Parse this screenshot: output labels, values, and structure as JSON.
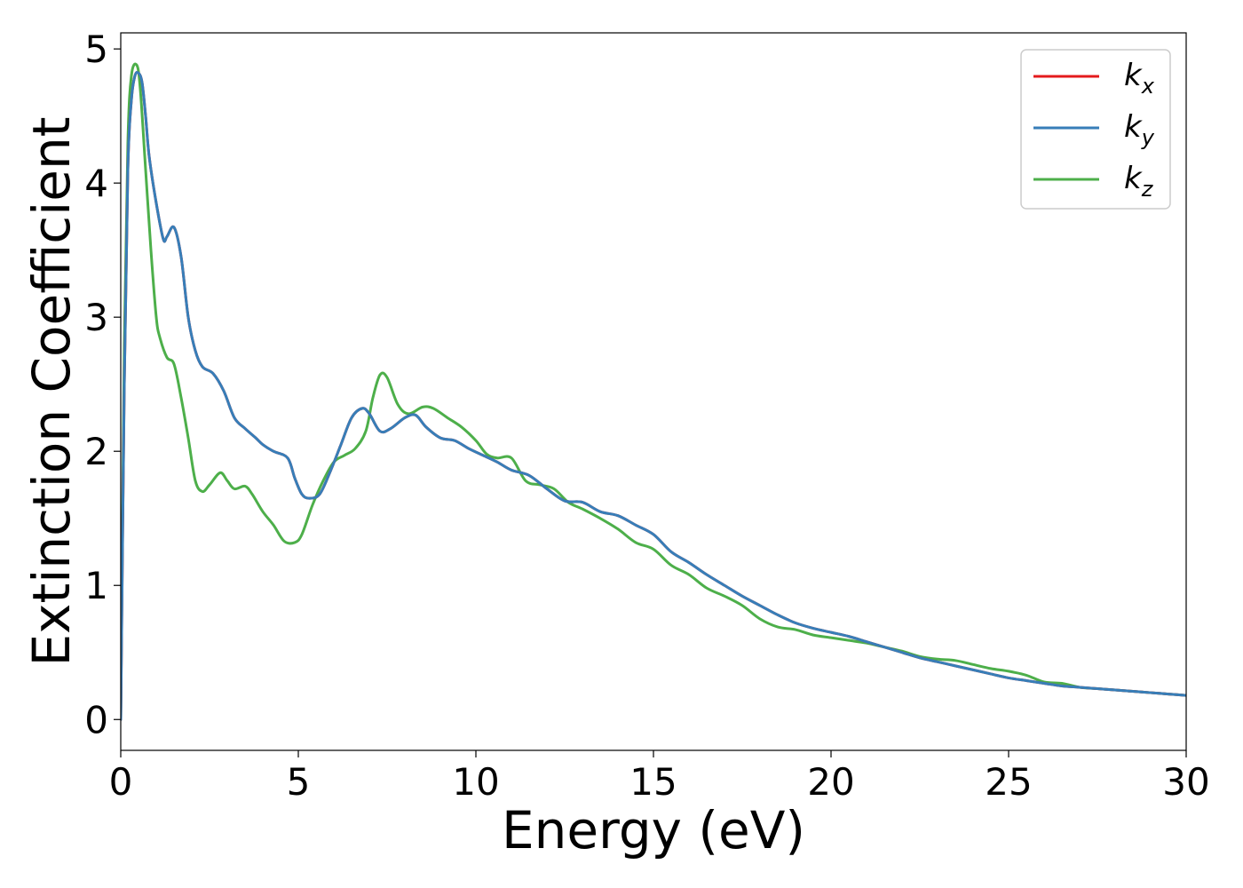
{
  "chart_data": {
    "type": "line",
    "title": "",
    "xlabel": "Energy (eV)",
    "ylabel": "Extinction Coefficient",
    "xlim": [
      0,
      30
    ],
    "ylim": [
      -0.23,
      5.12
    ],
    "xticks": [
      0,
      5,
      10,
      15,
      20,
      25,
      30
    ],
    "yticks": [
      0,
      1,
      2,
      3,
      4,
      5
    ],
    "grid": false,
    "legend_position": "top-right",
    "series": [
      {
        "name": "k_x",
        "legend_main": "k",
        "legend_sub": "x",
        "color": "#e41a1c",
        "x": [
          0,
          0.1,
          0.2,
          0.3,
          0.4,
          0.5,
          0.6,
          0.7,
          0.8,
          1.0,
          1.2,
          1.3,
          1.5,
          1.7,
          1.9,
          2.1,
          2.3,
          2.6,
          2.9,
          3.2,
          3.5,
          3.8,
          4.0,
          4.3,
          4.7,
          4.9,
          5.1,
          5.3,
          5.6,
          5.9,
          6.2,
          6.5,
          6.8,
          7.0,
          7.3,
          7.6,
          8.0,
          8.3,
          8.6,
          9.0,
          9.4,
          9.8,
          10.2,
          10.6,
          11.0,
          11.5,
          12.0,
          12.5,
          13.0,
          13.5,
          14.0,
          14.5,
          15.0,
          15.5,
          16.0,
          16.5,
          17.0,
          17.5,
          18.0,
          18.5,
          19.0,
          19.5,
          20.0,
          20.5,
          21.0,
          21.5,
          22.0,
          22.5,
          23.0,
          23.5,
          24.0,
          24.5,
          25.0,
          25.5,
          26.0,
          26.5,
          27.0,
          27.5,
          28.0,
          28.5,
          29.0,
          29.5,
          30.0
        ],
        "y": [
          0,
          2.5,
          4.1,
          4.62,
          4.8,
          4.82,
          4.75,
          4.5,
          4.2,
          3.85,
          3.58,
          3.6,
          3.67,
          3.45,
          3.0,
          2.75,
          2.63,
          2.58,
          2.45,
          2.25,
          2.17,
          2.1,
          2.05,
          2.0,
          1.95,
          1.8,
          1.68,
          1.65,
          1.68,
          1.85,
          2.05,
          2.25,
          2.32,
          2.28,
          2.15,
          2.17,
          2.25,
          2.27,
          2.18,
          2.1,
          2.08,
          2.02,
          1.97,
          1.92,
          1.86,
          1.82,
          1.72,
          1.63,
          1.62,
          1.55,
          1.52,
          1.45,
          1.38,
          1.25,
          1.17,
          1.08,
          1.0,
          0.92,
          0.85,
          0.78,
          0.72,
          0.68,
          0.65,
          0.62,
          0.58,
          0.54,
          0.5,
          0.46,
          0.43,
          0.4,
          0.37,
          0.34,
          0.31,
          0.29,
          0.27,
          0.25,
          0.24,
          0.23,
          0.22,
          0.21,
          0.2,
          0.19,
          0.18
        ]
      },
      {
        "name": "k_y",
        "legend_main": "k",
        "legend_sub": "y",
        "color": "#377eb8",
        "x": [
          0,
          0.1,
          0.2,
          0.3,
          0.4,
          0.5,
          0.6,
          0.7,
          0.8,
          1.0,
          1.2,
          1.3,
          1.5,
          1.7,
          1.9,
          2.1,
          2.3,
          2.6,
          2.9,
          3.2,
          3.5,
          3.8,
          4.0,
          4.3,
          4.7,
          4.9,
          5.1,
          5.3,
          5.6,
          5.9,
          6.2,
          6.5,
          6.8,
          7.0,
          7.3,
          7.6,
          8.0,
          8.3,
          8.6,
          9.0,
          9.4,
          9.8,
          10.2,
          10.6,
          11.0,
          11.5,
          12.0,
          12.5,
          13.0,
          13.5,
          14.0,
          14.5,
          15.0,
          15.5,
          16.0,
          16.5,
          17.0,
          17.5,
          18.0,
          18.5,
          19.0,
          19.5,
          20.0,
          20.5,
          21.0,
          21.5,
          22.0,
          22.5,
          23.0,
          23.5,
          24.0,
          24.5,
          25.0,
          25.5,
          26.0,
          26.5,
          27.0,
          27.5,
          28.0,
          28.5,
          29.0,
          29.5,
          30.0
        ],
        "y": [
          0,
          2.5,
          4.1,
          4.62,
          4.8,
          4.82,
          4.75,
          4.5,
          4.2,
          3.85,
          3.58,
          3.6,
          3.67,
          3.45,
          3.0,
          2.75,
          2.63,
          2.58,
          2.45,
          2.25,
          2.17,
          2.1,
          2.05,
          2.0,
          1.95,
          1.8,
          1.68,
          1.65,
          1.68,
          1.85,
          2.05,
          2.25,
          2.32,
          2.28,
          2.15,
          2.17,
          2.25,
          2.27,
          2.18,
          2.1,
          2.08,
          2.02,
          1.97,
          1.92,
          1.86,
          1.82,
          1.72,
          1.63,
          1.62,
          1.55,
          1.52,
          1.45,
          1.38,
          1.25,
          1.17,
          1.08,
          1.0,
          0.92,
          0.85,
          0.78,
          0.72,
          0.68,
          0.65,
          0.62,
          0.58,
          0.54,
          0.5,
          0.46,
          0.43,
          0.4,
          0.37,
          0.34,
          0.31,
          0.29,
          0.27,
          0.25,
          0.24,
          0.23,
          0.22,
          0.21,
          0.2,
          0.19,
          0.18
        ]
      },
      {
        "name": "k_z",
        "legend_main": "k",
        "legend_sub": "z",
        "color": "#4daf4a",
        "x": [
          0,
          0.1,
          0.2,
          0.3,
          0.45,
          0.55,
          0.7,
          0.85,
          1.0,
          1.1,
          1.3,
          1.5,
          1.7,
          1.9,
          2.1,
          2.3,
          2.5,
          2.8,
          3.0,
          3.2,
          3.5,
          3.7,
          4.0,
          4.3,
          4.6,
          4.9,
          5.1,
          5.4,
          5.7,
          6.0,
          6.3,
          6.6,
          6.9,
          7.1,
          7.3,
          7.5,
          7.8,
          8.1,
          8.5,
          8.8,
          9.2,
          9.6,
          10.0,
          10.3,
          10.6,
          11.0,
          11.4,
          11.8,
          12.2,
          12.6,
          13.0,
          13.5,
          14.0,
          14.5,
          15.0,
          15.5,
          16.0,
          16.5,
          17.0,
          17.5,
          18.0,
          18.5,
          19.0,
          19.5,
          20.0,
          20.5,
          21.0,
          21.5,
          22.0,
          22.5,
          23.0,
          23.5,
          24.0,
          24.5,
          25.0,
          25.5,
          26.0,
          26.5,
          27.0,
          27.5,
          28.0,
          28.5,
          29.0,
          29.5,
          30.0
        ],
        "y": [
          0,
          2.8,
          4.3,
          4.8,
          4.88,
          4.7,
          4.1,
          3.5,
          3.0,
          2.85,
          2.7,
          2.65,
          2.4,
          2.1,
          1.78,
          1.7,
          1.75,
          1.84,
          1.78,
          1.72,
          1.74,
          1.68,
          1.55,
          1.45,
          1.33,
          1.32,
          1.38,
          1.6,
          1.78,
          1.92,
          1.97,
          2.02,
          2.15,
          2.4,
          2.57,
          2.55,
          2.35,
          2.28,
          2.33,
          2.32,
          2.25,
          2.18,
          2.08,
          1.98,
          1.95,
          1.95,
          1.78,
          1.75,
          1.72,
          1.62,
          1.57,
          1.5,
          1.42,
          1.32,
          1.27,
          1.15,
          1.08,
          0.98,
          0.92,
          0.85,
          0.75,
          0.69,
          0.67,
          0.63,
          0.61,
          0.59,
          0.57,
          0.54,
          0.51,
          0.47,
          0.45,
          0.44,
          0.41,
          0.38,
          0.36,
          0.33,
          0.28,
          0.27,
          0.24,
          0.23,
          0.22,
          0.21,
          0.2,
          0.19,
          0.18
        ]
      }
    ]
  }
}
